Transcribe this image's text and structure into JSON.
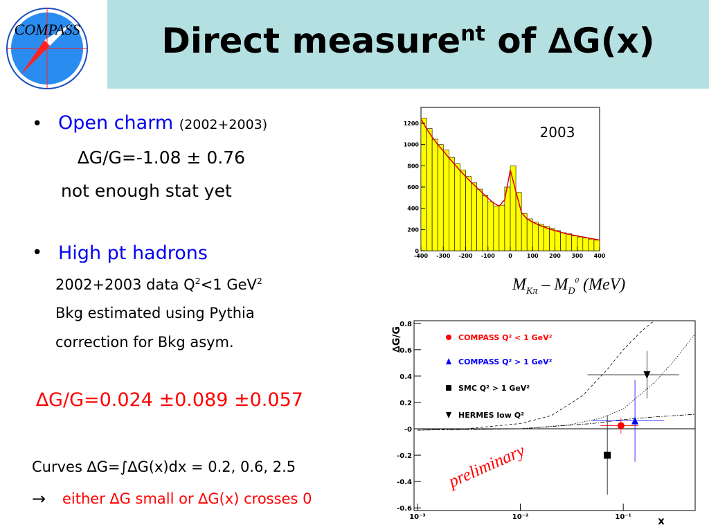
{
  "header": {
    "logo": "COMPASS",
    "title": "Direct measure",
    "title_sup": "nt",
    "title_end": " of ∆G(x)"
  },
  "bullets": [
    {
      "head": "Open charm",
      "note": "(2002+2003)",
      "lines": [
        "∆G/G=-1.08 ± 0.76",
        "not enough stat yet"
      ]
    },
    {
      "head": "High pt hadrons",
      "data_line": [
        "2002+2003 data Q",
        "2",
        "<1 GeV",
        "2"
      ],
      "lines": [
        "Bkg estimated using Pythia",
        "correction for Bkg asym."
      ]
    }
  ],
  "result": "∆G/G=0.024 ±0.089 ±0.057",
  "curves_text": "Curves ∆G=∫∆G(x)dx = 0.2, 0.6, 2.5",
  "arrow": "→",
  "conclusion": "either ∆G small or ∆G(x) crosses 0",
  "chart_data": [
    {
      "type": "histogram",
      "annotation": "2003",
      "x_label": [
        "M",
        "Kπ",
        " – M",
        "D",
        "0",
        " (MeV)"
      ],
      "color": "#ffff00",
      "bins": [
        -400,
        -375,
        -350,
        -325,
        -300,
        -275,
        -250,
        -225,
        -200,
        -175,
        -150,
        -125,
        -100,
        -75,
        -50,
        -25,
        0,
        25,
        50,
        75,
        100,
        125,
        150,
        175,
        200,
        225,
        250,
        275,
        300,
        325,
        350,
        375,
        400
      ],
      "values": [
        1250,
        1150,
        1050,
        1000,
        950,
        880,
        820,
        760,
        700,
        640,
        580,
        520,
        460,
        420,
        430,
        600,
        800,
        550,
        350,
        300,
        270,
        250,
        230,
        210,
        190,
        170,
        160,
        140,
        130,
        120,
        110,
        100
      ],
      "fit": {
        "color": "#dd0000",
        "x": [
          -400,
          -375,
          -350,
          -325,
          -300,
          -275,
          -250,
          -225,
          -200,
          -175,
          -150,
          -125,
          -100,
          -75,
          -50,
          -25,
          0,
          25,
          50,
          75,
          100,
          125,
          150,
          175,
          200,
          225,
          250,
          275,
          300,
          325,
          350,
          375,
          400
        ],
        "values": [
          1240,
          1150,
          1070,
          1000,
          940,
          875,
          815,
          755,
          700,
          645,
          595,
          545,
          495,
          450,
          420,
          480,
          760,
          560,
          360,
          300,
          270,
          245,
          225,
          205,
          190,
          175,
          160,
          150,
          140,
          130,
          120,
          110,
          100
        ]
      },
      "xlim": [
        -400,
        400
      ],
      "xticks": [
        -400,
        -300,
        -200,
        -100,
        0,
        100,
        200,
        300,
        400
      ],
      "ylim": [
        0,
        1350
      ],
      "yticks": [
        0,
        200,
        400,
        600,
        800,
        1000,
        1200
      ]
    },
    {
      "type": "scatter",
      "x_label": "x",
      "y_label": "∆G/G",
      "annotation": "preliminary",
      "log_x": true,
      "xlim": [
        0.001,
        0.5
      ],
      "xticks": [
        {
          "value": 0.001,
          "label": "10⁻³"
        },
        {
          "value": 0.01,
          "label": "10⁻²"
        },
        {
          "value": 0.1,
          "label": "10⁻¹"
        }
      ],
      "ylim": [
        -0.62,
        0.82
      ],
      "yticks": [
        -0.6,
        -0.4,
        -0.2,
        {
          "value": 0,
          "label": "-0"
        },
        0.2,
        0.4,
        0.6,
        0.8
      ],
      "series": [
        {
          "name": "COMPASS Q² < 1 GeV²",
          "color": "#ff0000",
          "marker": "circle",
          "x": [
            0.095
          ],
          "values": [
            0.024
          ],
          "yerr": [
            0.06
          ],
          "xlo": [
            0.06
          ],
          "xhi": [
            0.14
          ]
        },
        {
          "name": "COMPASS Q² > 1 GeV²",
          "color": "#0000ff",
          "marker": "triangle-up",
          "x": [
            0.13
          ],
          "values": [
            0.06
          ],
          "yerr": [
            0.31
          ],
          "xlo": [
            0.05
          ],
          "xhi": [
            0.25
          ]
        },
        {
          "name": "SMC Q² > 1 GeV²",
          "color": "#000000",
          "marker": "square",
          "x": [
            0.07
          ],
          "values": [
            -0.2
          ],
          "yerr": [
            0.3
          ]
        },
        {
          "name": "HERMES low Q²",
          "color": "#000000",
          "marker": "triangle-down",
          "x": [
            0.17
          ],
          "values": [
            0.41
          ],
          "yerr": [
            0.18
          ],
          "xlo": [
            0.045
          ],
          "xhi": [
            0.35
          ]
        }
      ],
      "curves": [
        {
          "style": "dashed",
          "x": [
            0.001,
            0.003,
            0.01,
            0.02,
            0.04,
            0.07,
            0.1,
            0.15,
            0.2
          ],
          "values": [
            -0.01,
            0.0,
            0.04,
            0.1,
            0.25,
            0.45,
            0.6,
            0.74,
            0.82
          ]
        },
        {
          "style": "dotted",
          "x": [
            0.001,
            0.01,
            0.03,
            0.06,
            0.1,
            0.2,
            0.3,
            0.5
          ],
          "values": [
            -0.01,
            0.0,
            0.03,
            0.08,
            0.15,
            0.35,
            0.5,
            0.72
          ]
        },
        {
          "style": "dashdot",
          "x": [
            0.001,
            0.01,
            0.05,
            0.1,
            0.2,
            0.5
          ],
          "values": [
            -0.01,
            0.0,
            0.04,
            0.07,
            0.09,
            0.11
          ]
        }
      ]
    }
  ]
}
